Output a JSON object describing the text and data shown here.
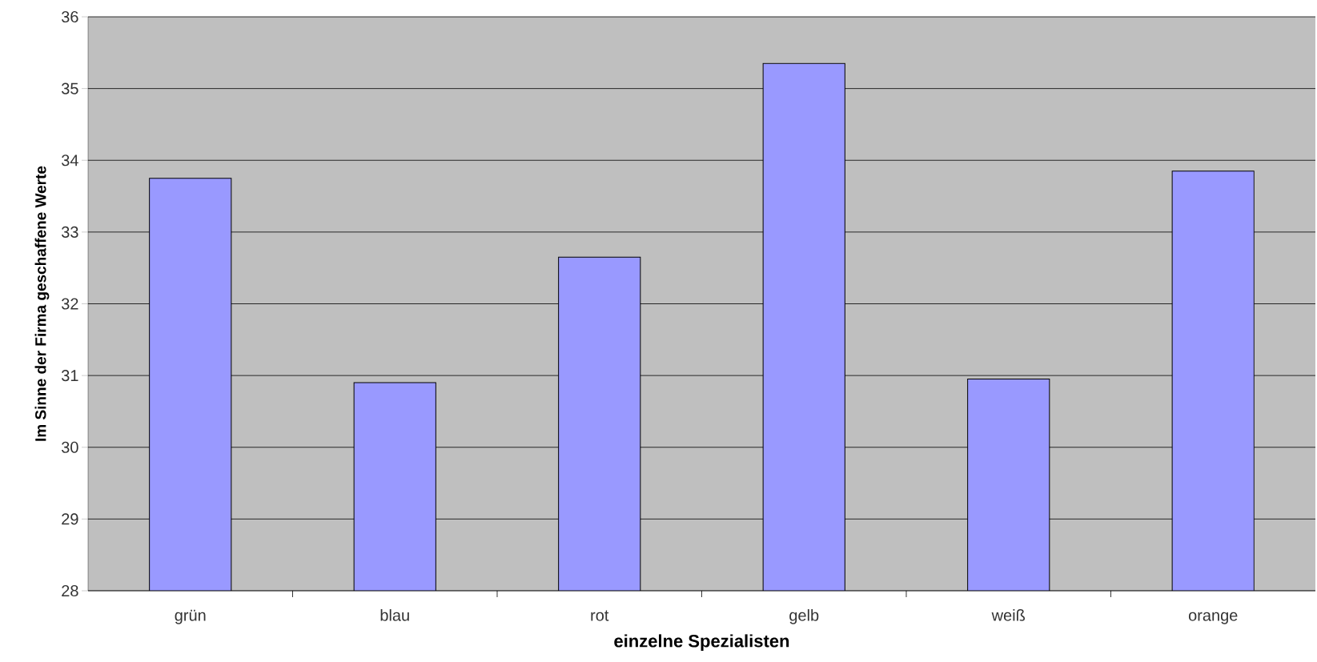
{
  "chart_data": {
    "type": "bar",
    "xlabel": "einzelne Spezialisten",
    "ylabel": "Im Sinne der Firma geschaffene Werte",
    "categories": [
      "grün",
      "blau",
      "rot",
      "gelb",
      "weiß",
      "orange"
    ],
    "values": [
      33.75,
      30.9,
      32.65,
      35.35,
      30.95,
      33.85
    ],
    "color": "#9999ff",
    "ylim": [
      28,
      36
    ],
    "yticks": [
      28,
      29,
      30,
      31,
      32,
      33,
      34,
      35,
      36
    ],
    "grid": "y"
  }
}
